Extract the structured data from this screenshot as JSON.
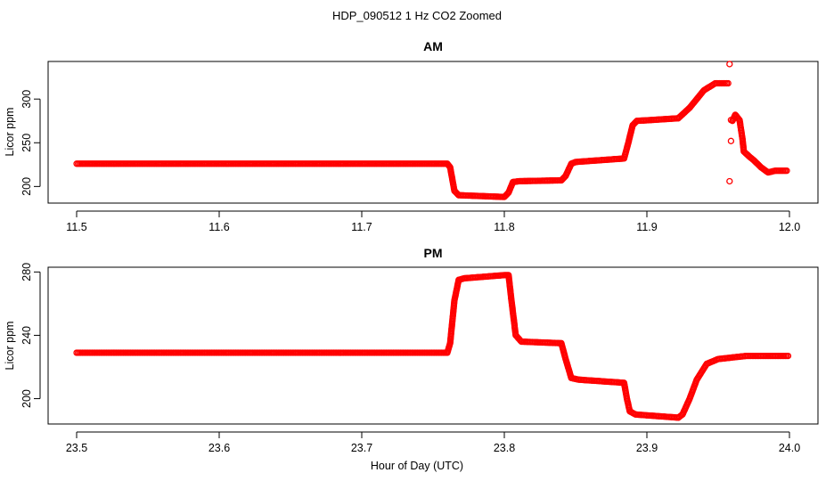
{
  "chart_data": {
    "title": "HDP_090512  1 Hz CO2 Zoomed",
    "xlabel": "Hour of Day (UTC)",
    "colors": {
      "points": "#ff0000",
      "axes": "#000000"
    },
    "panels": [
      {
        "type": "scatter",
        "title": "AM",
        "ylabel": "Licor ppm",
        "xlim": [
          11.48,
          12.02
        ],
        "ylim": [
          181,
          343
        ],
        "xticks": [
          11.5,
          11.6,
          11.7,
          11.8,
          11.9,
          12.0
        ],
        "xtick_labels": [
          "11.5",
          "11.6",
          "11.7",
          "11.8",
          "11.9",
          "12.0"
        ],
        "yticks": [
          200,
          250,
          300
        ],
        "ytick_labels": [
          "200",
          "250",
          "300"
        ],
        "trace": [
          [
            11.5,
            226
          ],
          [
            11.76,
            226
          ],
          [
            11.762,
            222
          ],
          [
            11.765,
            195
          ],
          [
            11.768,
            190
          ],
          [
            11.8,
            188
          ],
          [
            11.803,
            193
          ],
          [
            11.806,
            205
          ],
          [
            11.81,
            206
          ],
          [
            11.84,
            207
          ],
          [
            11.843,
            212
          ],
          [
            11.847,
            226
          ],
          [
            11.85,
            228
          ],
          [
            11.884,
            232
          ],
          [
            11.887,
            250
          ],
          [
            11.89,
            270
          ],
          [
            11.893,
            275
          ],
          [
            11.922,
            278
          ],
          [
            11.93,
            290
          ],
          [
            11.94,
            310
          ],
          [
            11.948,
            318
          ],
          [
            11.958,
            318
          ]
        ],
        "trace2": [
          [
            11.96,
            275
          ],
          [
            11.962,
            282
          ],
          [
            11.965,
            276
          ],
          [
            11.967,
            255
          ],
          [
            11.968,
            240
          ],
          [
            11.972,
            234
          ],
          [
            11.975,
            230
          ],
          [
            11.98,
            222
          ],
          [
            11.985,
            216
          ],
          [
            11.99,
            218
          ],
          [
            11.999,
            218
          ]
        ],
        "outliers": [
          [
            11.958,
            340
          ],
          [
            11.959,
            276
          ],
          [
            11.959,
            252
          ],
          [
            11.958,
            206
          ]
        ]
      },
      {
        "type": "scatter",
        "title": "PM",
        "ylabel": "Licor ppm",
        "xlim": [
          23.48,
          24.02
        ],
        "ylim": [
          184,
          283
        ],
        "xticks": [
          23.5,
          23.6,
          23.7,
          23.8,
          23.9,
          24.0
        ],
        "xtick_labels": [
          "23.5",
          "23.6",
          "23.7",
          "23.8",
          "23.9",
          "24.0"
        ],
        "yticks": [
          200,
          240,
          280
        ],
        "ytick_labels": [
          "200",
          "240",
          "280"
        ],
        "trace": [
          [
            23.5,
            229
          ],
          [
            23.76,
            229
          ],
          [
            23.762,
            235
          ],
          [
            23.765,
            262
          ],
          [
            23.768,
            275
          ],
          [
            23.772,
            276
          ],
          [
            23.8,
            278
          ],
          [
            23.803,
            278
          ],
          [
            23.805,
            262
          ],
          [
            23.808,
            240
          ],
          [
            23.812,
            236
          ],
          [
            23.84,
            235
          ],
          [
            23.843,
            225
          ],
          [
            23.847,
            213
          ],
          [
            23.852,
            212
          ],
          [
            23.884,
            210
          ],
          [
            23.886,
            200
          ],
          [
            23.888,
            192
          ],
          [
            23.892,
            190
          ],
          [
            23.922,
            188
          ],
          [
            23.925,
            190
          ],
          [
            23.93,
            200
          ],
          [
            23.935,
            212
          ],
          [
            23.942,
            222
          ],
          [
            23.95,
            225
          ],
          [
            23.97,
            227
          ],
          [
            24.0,
            227
          ]
        ]
      }
    ]
  }
}
